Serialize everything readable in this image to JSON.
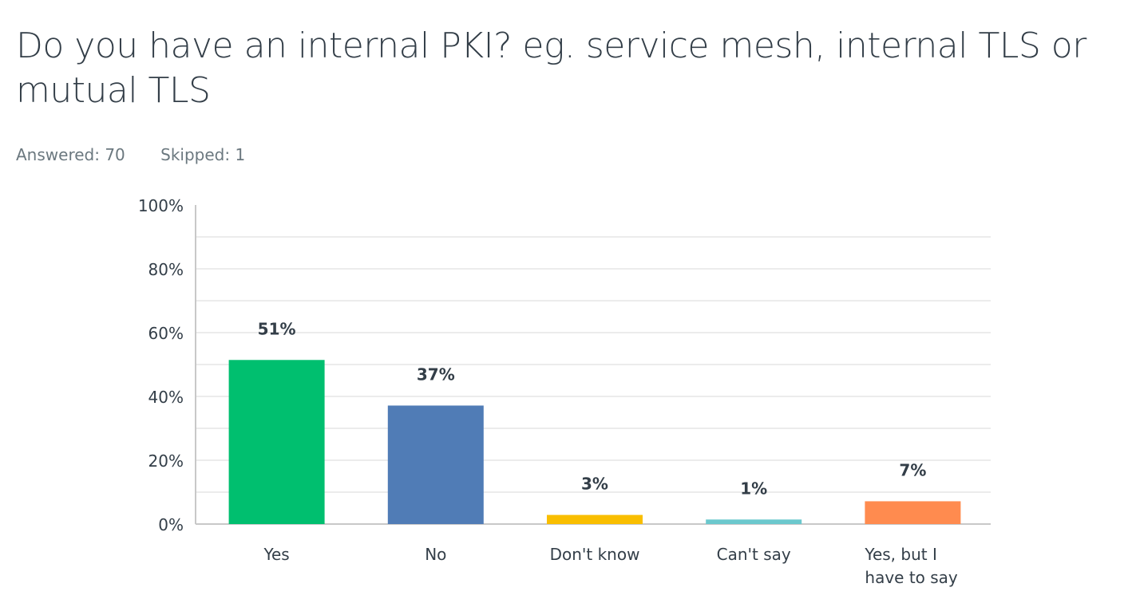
{
  "question": {
    "title": "Do you have an internal PKI? eg. service mesh, internal TLS or mutual TLS",
    "answered": "Answered: 70",
    "skipped": "Skipped: 1"
  },
  "chart_data": {
    "type": "bar",
    "categories": [
      [
        "Yes"
      ],
      [
        "No"
      ],
      [
        "Don't know"
      ],
      [
        "Can't say"
      ],
      [
        "Yes, but I",
        "have to say"
      ]
    ],
    "values": [
      51.43,
      37.14,
      2.86,
      1.43,
      7.14
    ],
    "data_labels": [
      "51%",
      "37%",
      "3%",
      "1%",
      "7%"
    ],
    "colors": [
      "#00bf6f",
      "#507cb6",
      "#f9be00",
      "#6bc8cd",
      "#ff8b4f"
    ],
    "ylim": [
      0,
      100
    ],
    "yticks": [
      0,
      20,
      40,
      60,
      80,
      100
    ],
    "ytick_labels": [
      "0%",
      "20%",
      "40%",
      "60%",
      "80%",
      "100%"
    ],
    "grid": true,
    "xlabel": "",
    "ylabel": ""
  }
}
